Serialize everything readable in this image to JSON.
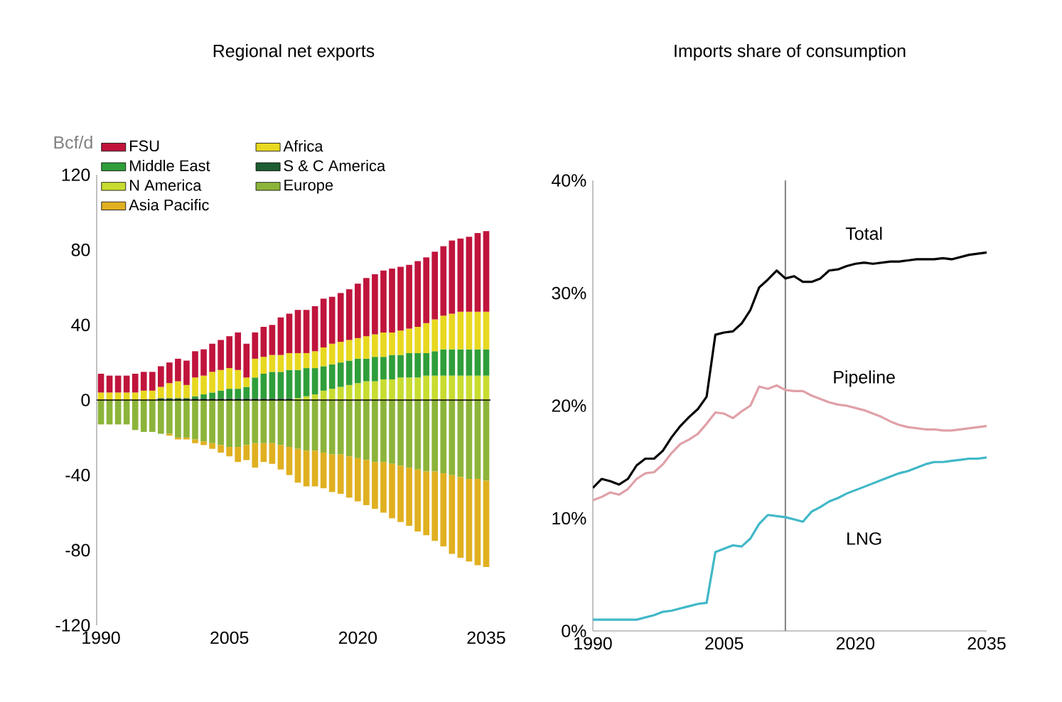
{
  "chart_data": [
    {
      "type": "bar",
      "title": "Regional net exports",
      "ylabel": "Bcf/d",
      "stacked": true,
      "legend": "top left",
      "x": [
        1990,
        1991,
        1992,
        1993,
        1994,
        1995,
        1996,
        1997,
        1998,
        1999,
        2000,
        2001,
        2002,
        2003,
        2004,
        2005,
        2006,
        2007,
        2008,
        2009,
        2010,
        2011,
        2012,
        2013,
        2014,
        2015,
        2016,
        2017,
        2018,
        2019,
        2020,
        2021,
        2022,
        2023,
        2024,
        2025,
        2026,
        2027,
        2028,
        2029,
        2030,
        2031,
        2032,
        2033,
        2034,
        2035
      ],
      "xlim": [
        1989.5,
        2035.5
      ],
      "xticks": [
        1990,
        2005,
        2020,
        2035
      ],
      "ylim": [
        -120,
        120
      ],
      "yticks": [
        -120,
        -80,
        -40,
        0,
        40,
        80,
        120
      ],
      "series": [
        {
          "name": "S & C America",
          "color": "#1e5e32",
          "values": [
            0,
            0,
            0,
            0,
            0,
            0,
            0,
            1,
            1,
            1,
            1,
            1,
            1,
            1,
            1,
            1,
            1,
            1,
            1,
            1,
            1,
            1,
            1,
            0,
            0,
            0,
            0,
            0,
            0,
            0,
            0,
            0,
            0,
            0,
            0,
            0,
            0,
            0,
            0,
            0,
            0,
            0,
            0,
            0,
            0,
            0
          ]
        },
        {
          "name": "N America",
          "color": "#c8dc30",
          "values": [
            0,
            0,
            0,
            0,
            0,
            0,
            0,
            0,
            0,
            0,
            0,
            0,
            0,
            0,
            0,
            0,
            0,
            0,
            0,
            0,
            0,
            0,
            0,
            1,
            2,
            3,
            5,
            6,
            7,
            8,
            9,
            10,
            10,
            11,
            11,
            12,
            12,
            12,
            13,
            13,
            13,
            13,
            13,
            13,
            13,
            13
          ]
        },
        {
          "name": "Middle East",
          "color": "#2e9e3a",
          "values": [
            0,
            0,
            0,
            0,
            0,
            0,
            0,
            0,
            0,
            0,
            0,
            1,
            2,
            3,
            4,
            5,
            5,
            6,
            11,
            13,
            14,
            14,
            15,
            15,
            15,
            14,
            13,
            13,
            13,
            13,
            13,
            12,
            13,
            12,
            13,
            12,
            13,
            13,
            12,
            13,
            14,
            14,
            14,
            14,
            14,
            14
          ]
        },
        {
          "name": "Africa",
          "color": "#e8d820",
          "values": [
            4,
            4,
            4,
            4,
            4,
            5,
            5,
            6,
            8,
            9,
            7,
            10,
            10,
            11,
            11,
            11,
            10,
            5,
            10,
            9,
            9,
            9,
            9,
            9,
            8,
            9,
            10,
            11,
            11,
            11,
            11,
            12,
            12,
            13,
            12,
            13,
            13,
            14,
            16,
            17,
            18,
            19,
            20,
            20,
            20,
            20
          ]
        },
        {
          "name": "FSU",
          "color": "#c0143c",
          "values": [
            10,
            9,
            9,
            9,
            10,
            10,
            10,
            11,
            11,
            12,
            13,
            14,
            14,
            15,
            16,
            17,
            20,
            18,
            14,
            16,
            16,
            20,
            21,
            23,
            23,
            24,
            26,
            25,
            26,
            27,
            29,
            31,
            32,
            33,
            34,
            34,
            34,
            35,
            35,
            36,
            37,
            39,
            39,
            40,
            42,
            43
          ]
        },
        {
          "name": "Europe",
          "color": "#8cb43a",
          "values": [
            -13,
            -13,
            -13,
            -13,
            -16,
            -17,
            -17,
            -18,
            -18,
            -20,
            -20,
            -21,
            -22,
            -23,
            -24,
            -25,
            -25,
            -24,
            -23,
            -23,
            -23,
            -24,
            -25,
            -26,
            -27,
            -27,
            -28,
            -29,
            -29,
            -30,
            -31,
            -32,
            -33,
            -33,
            -34,
            -35,
            -36,
            -37,
            -38,
            -38,
            -39,
            -40,
            -41,
            -42,
            -42,
            -43
          ]
        },
        {
          "name": "Asia Pacific",
          "color": "#e0b020",
          "values": [
            0,
            0,
            0,
            0,
            0,
            0,
            0,
            0,
            -1,
            -1,
            -1,
            -2,
            -2,
            -3,
            -4,
            -5,
            -8,
            -8,
            -13,
            -10,
            -11,
            -13,
            -15,
            -18,
            -19,
            -19,
            -19,
            -20,
            -21,
            -22,
            -23,
            -24,
            -25,
            -27,
            -29,
            -30,
            -31,
            -33,
            -34,
            -37,
            -39,
            -42,
            -43,
            -44,
            -46,
            -46
          ]
        }
      ]
    },
    {
      "type": "line",
      "title": "Imports share of consumption",
      "x": [
        1990,
        1991,
        1992,
        1993,
        1994,
        1995,
        1996,
        1997,
        1998,
        1999,
        2000,
        2001,
        2002,
        2003,
        2004,
        2005,
        2006,
        2007,
        2008,
        2009,
        2010,
        2011,
        2012,
        2013,
        2014,
        2015,
        2016,
        2017,
        2018,
        2019,
        2020,
        2021,
        2022,
        2023,
        2024,
        2025,
        2026,
        2027,
        2028,
        2029,
        2030,
        2031,
        2032,
        2033,
        2034,
        2035
      ],
      "xlim": [
        1990,
        2035
      ],
      "xticks": [
        1990,
        2005,
        2020,
        2035
      ],
      "ylim": [
        0,
        40
      ],
      "yticks": [
        {
          "value": 0,
          "label": "0%"
        },
        {
          "value": 10,
          "label": "10%"
        },
        {
          "value": 20,
          "label": "20%"
        },
        {
          "value": 30,
          "label": "30%"
        },
        {
          "value": 40,
          "label": "40%"
        }
      ],
      "ref_lines": [
        {
          "axis": "x",
          "value": 2012,
          "color": "#808080"
        }
      ],
      "series": [
        {
          "name": "Total",
          "color": "#000000",
          "values": [
            12.7,
            13.5,
            13.3,
            13.0,
            13.5,
            14.7,
            15.3,
            15.3,
            16.0,
            17.2,
            18.2,
            19.0,
            19.7,
            20.8,
            26.3,
            26.5,
            26.6,
            27.3,
            28.5,
            30.5,
            31.2,
            32.0,
            31.3,
            31.5,
            31.0,
            31.0,
            31.3,
            32.0,
            32.1,
            32.4,
            32.6,
            32.7,
            32.6,
            32.7,
            32.8,
            32.8,
            32.9,
            33.0,
            33.0,
            33.0,
            33.1,
            33.0,
            33.2,
            33.4,
            33.5,
            33.6
          ]
        },
        {
          "name": "Pipeline",
          "color": "#e0a0a8",
          "values": [
            11.6,
            11.9,
            12.3,
            12.1,
            12.6,
            13.5,
            14.0,
            14.1,
            14.8,
            15.8,
            16.6,
            17.0,
            17.5,
            18.4,
            19.4,
            19.3,
            18.9,
            19.5,
            20.0,
            21.7,
            21.5,
            21.8,
            21.4,
            21.3,
            21.3,
            20.9,
            20.6,
            20.3,
            20.1,
            20.0,
            19.8,
            19.6,
            19.3,
            19.0,
            18.6,
            18.3,
            18.1,
            18.0,
            17.9,
            17.9,
            17.8,
            17.8,
            17.9,
            18.0,
            18.1,
            18.2
          ]
        },
        {
          "name": "LNG",
          "color": "#40b8c8",
          "values": [
            1.0,
            1.0,
            1.0,
            1.0,
            1.0,
            1.0,
            1.2,
            1.4,
            1.7,
            1.8,
            2.0,
            2.2,
            2.4,
            2.5,
            7.0,
            7.3,
            7.6,
            7.5,
            8.2,
            9.5,
            10.3,
            10.2,
            10.1,
            9.9,
            9.7,
            10.6,
            11.0,
            11.5,
            11.8,
            12.2,
            12.5,
            12.8,
            13.1,
            13.4,
            13.7,
            14.0,
            14.2,
            14.5,
            14.8,
            15.0,
            15.0,
            15.1,
            15.2,
            15.3,
            15.3,
            15.4
          ]
        }
      ]
    }
  ]
}
